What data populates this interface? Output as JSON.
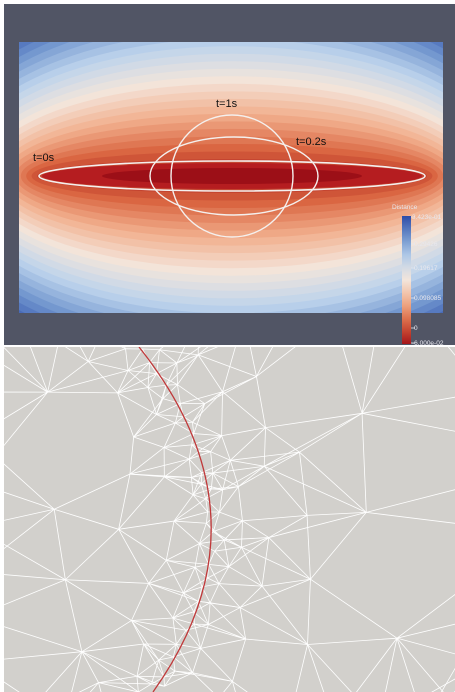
{
  "top_panel": {
    "background": "#515565",
    "contour_labels": [
      "t=0s",
      "t=1s",
      "t=0.2s"
    ],
    "colormap": [
      "#2d4ca8",
      "#6e93cd",
      "#bcd3ec",
      "#f3e5db",
      "#f2b08e",
      "#d9643f",
      "#a5151a"
    ],
    "colorbar": {
      "title": "Distance",
      "ticks": [
        "3.423e-01",
        "0.29426",
        "0.19617",
        "0.098085",
        "0",
        "-6.000e-02"
      ]
    }
  },
  "bottom_panel": {
    "background": "#d2d0cc",
    "mesh_color": "#ffffff",
    "interface_color": "#c0393a"
  }
}
